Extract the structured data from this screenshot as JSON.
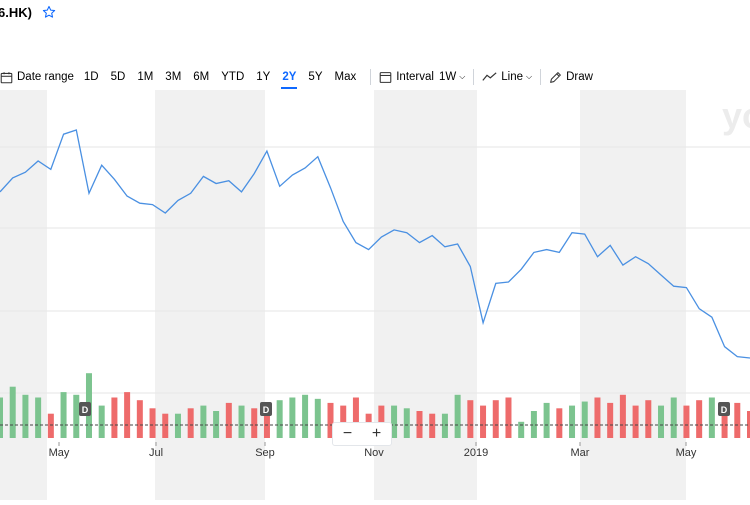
{
  "header": {
    "ticker": "6.HK)",
    "star_icon": "star-icon"
  },
  "toolbar": {
    "date_range_label": "Date range",
    "ranges": [
      "1D",
      "5D",
      "1M",
      "3M",
      "6M",
      "YTD",
      "1Y",
      "2Y",
      "5Y",
      "Max"
    ],
    "active_range": "2Y",
    "interval_label": "Interval",
    "interval_value": "1W",
    "line_label": "Line",
    "draw_label": "Draw"
  },
  "watermark": "yo",
  "zoom": {
    "minus": "−",
    "plus": "+"
  },
  "colors": {
    "line": "#4a90e2",
    "up": "#7cc48f",
    "down": "#ee6b6b",
    "shade": "#f1f1f1",
    "accent": "#0f69ff"
  },
  "chart_data": {
    "type": "line",
    "x_labels": [
      "May",
      "Jul",
      "Sep",
      "Nov",
      "2019",
      "Mar",
      "May"
    ],
    "price": [
      62,
      72,
      76,
      84,
      78,
      103,
      106,
      61,
      81,
      71,
      59,
      54,
      53,
      47,
      56,
      61,
      73,
      68,
      70,
      62,
      75,
      91,
      66,
      74,
      79,
      87,
      65,
      41,
      26,
      21,
      30,
      35,
      33,
      26,
      31,
      23,
      25,
      9,
      -31,
      -3,
      -2,
      7,
      19,
      21,
      19,
      33,
      32,
      16,
      24,
      10,
      16,
      11,
      3,
      -5,
      -6,
      -21,
      -27,
      -48,
      -55,
      -56
    ],
    "volume_up": [
      true,
      true,
      true,
      true,
      false,
      true,
      true,
      true,
      true,
      false,
      false,
      false,
      false,
      false,
      true,
      false,
      true,
      true,
      false,
      true,
      false,
      false,
      true,
      true,
      true,
      true,
      false,
      false,
      false,
      false,
      false,
      true,
      true,
      false,
      false,
      true,
      true,
      false,
      false,
      false,
      false,
      true,
      true,
      true,
      false,
      true,
      true,
      false,
      false,
      false,
      false,
      false,
      true,
      true,
      false,
      false,
      true,
      false,
      false,
      false
    ],
    "volume": [
      30,
      38,
      32,
      30,
      18,
      34,
      32,
      48,
      24,
      30,
      34,
      28,
      22,
      18,
      18,
      22,
      24,
      20,
      26,
      24,
      22,
      24,
      28,
      30,
      32,
      29,
      26,
      24,
      30,
      18,
      24,
      24,
      22,
      20,
      18,
      18,
      32,
      28,
      24,
      28,
      30,
      12,
      20,
      26,
      22,
      24,
      27,
      30,
      26,
      32,
      24,
      28,
      24,
      30,
      24,
      28,
      30,
      26,
      26,
      20
    ],
    "dividend_markers": [
      "D",
      "D",
      "D"
    ]
  }
}
